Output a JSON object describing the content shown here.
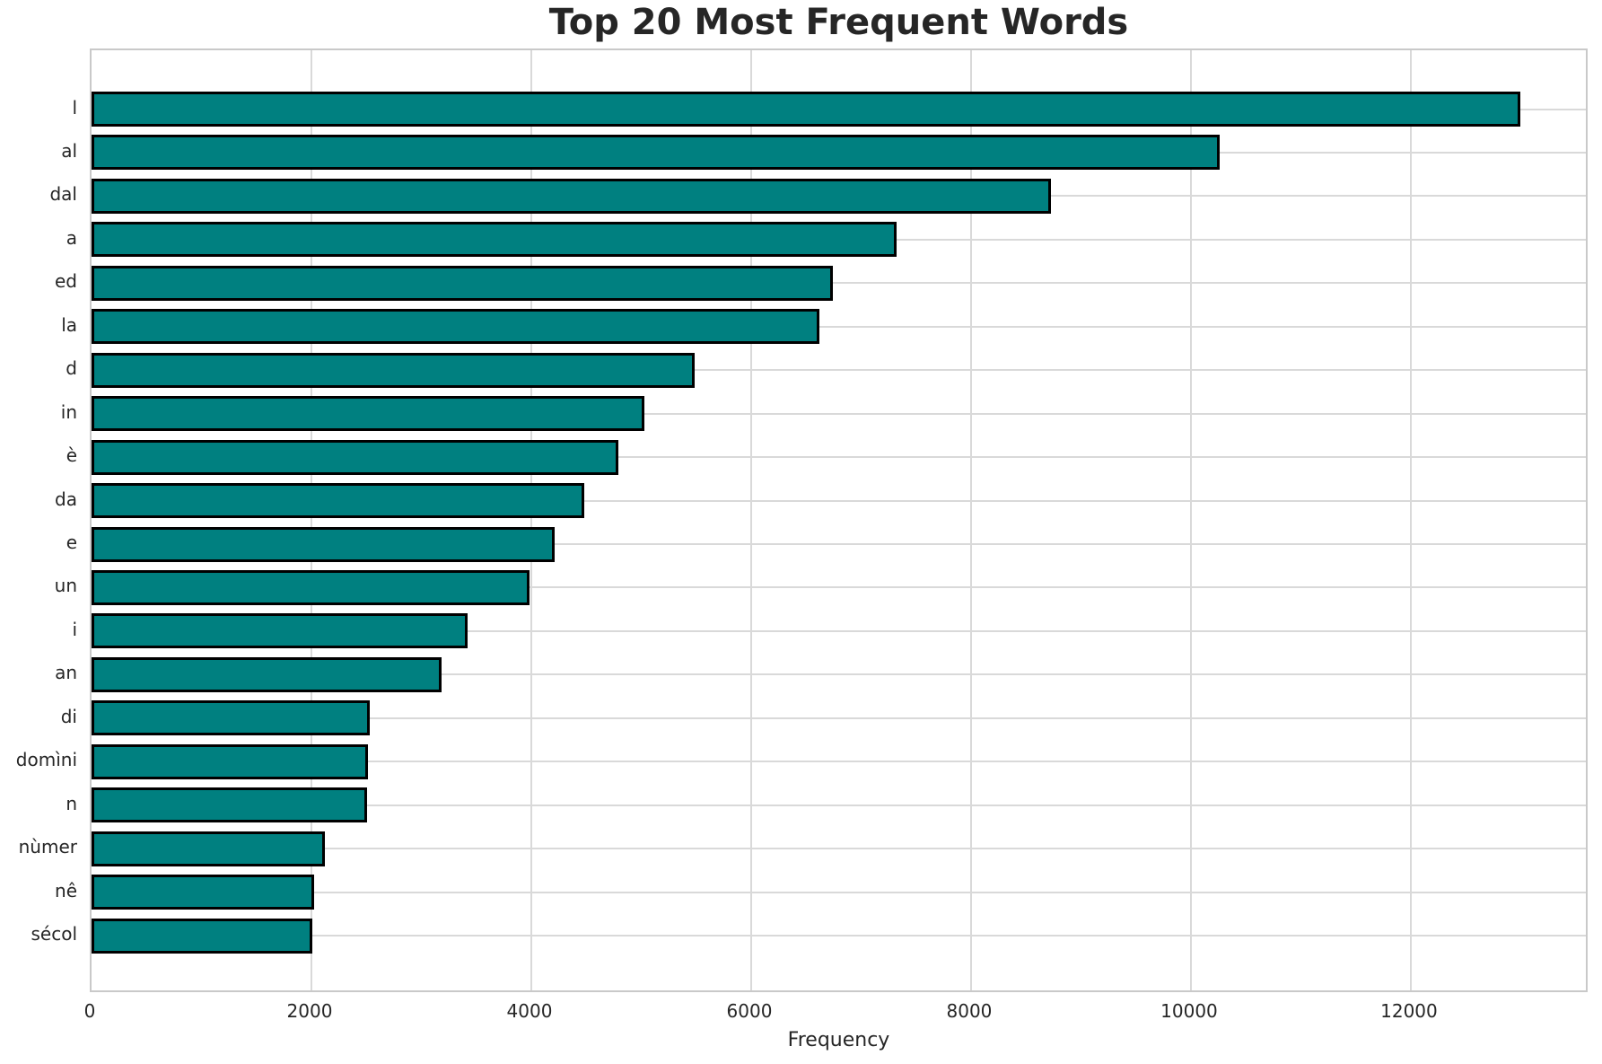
{
  "chart_data": {
    "type": "bar",
    "orientation": "horizontal",
    "title": "Top 20 Most Frequent Words",
    "xlabel": "Frequency",
    "ylabel": "",
    "categories": [
      "l",
      "al",
      "dal",
      "a",
      "ed",
      "la",
      "d",
      "in",
      "è",
      "da",
      "e",
      "un",
      "i",
      "an",
      "di",
      "domìni",
      "n",
      "nùmer",
      "nê",
      "sécol"
    ],
    "values": [
      13000,
      10260,
      8730,
      7320,
      6740,
      6620,
      5490,
      5030,
      4790,
      4480,
      4210,
      3980,
      3420,
      3180,
      2530,
      2515,
      2505,
      2120,
      2025,
      2005
    ],
    "xticks": [
      0,
      2000,
      4000,
      6000,
      8000,
      10000,
      12000
    ],
    "xlim": [
      0,
      13625
    ],
    "grid": true,
    "legend": null,
    "bar_color": "#008080",
    "bar_edge_color": "#000000",
    "grid_color": "#d9d9d9",
    "spine_color": "#c9c9c9",
    "text_color": "#262626"
  }
}
